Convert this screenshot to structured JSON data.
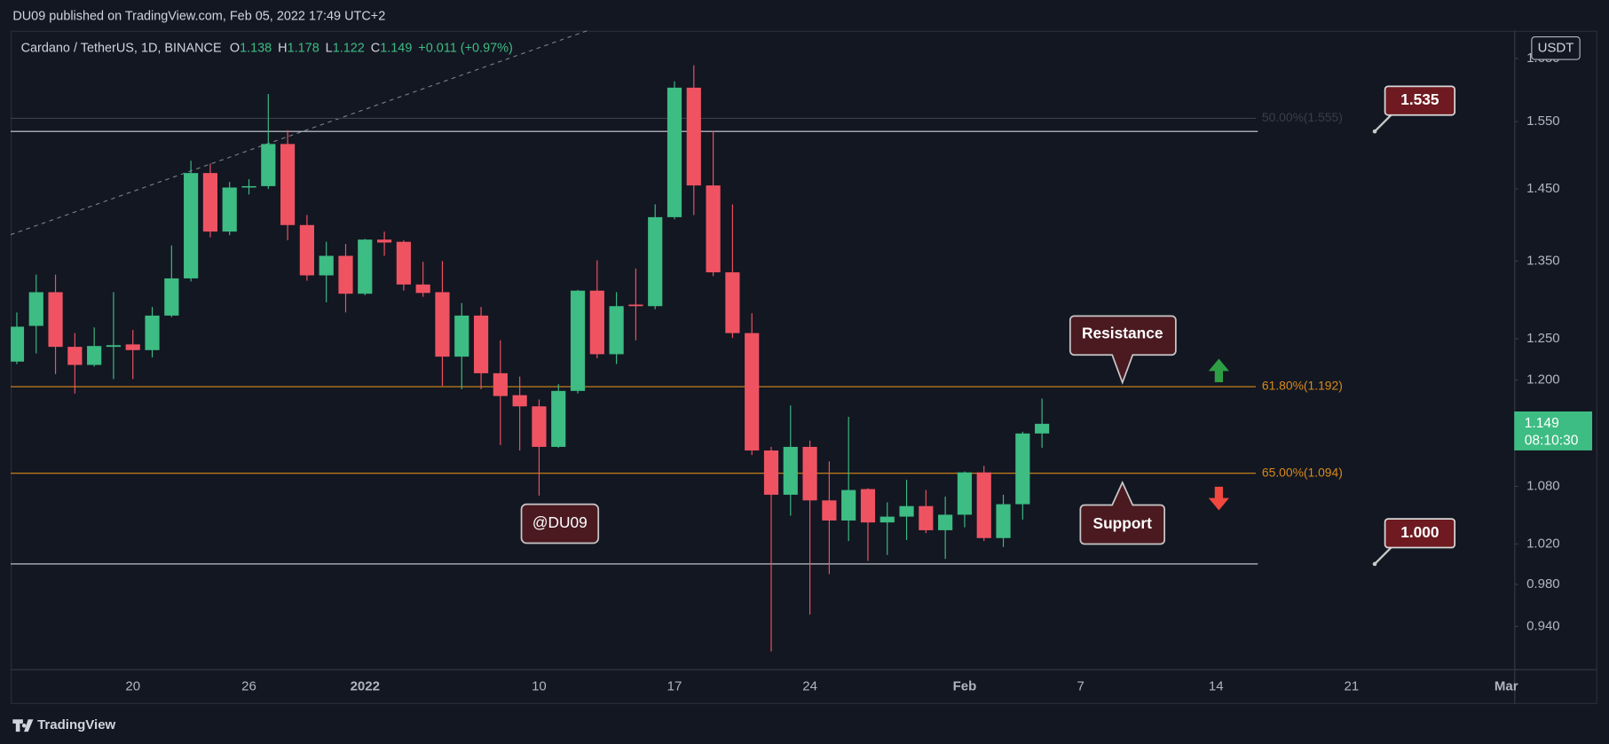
{
  "header": {
    "publisher": "DU09 published on TradingView.com, Feb 05, 2022 17:49 UTC+2"
  },
  "footer": {
    "brand": "TradingView"
  },
  "chart_data": {
    "type": "candlestick",
    "symbol": "Cardano / TetherUS, 1D, BINANCE",
    "ohlc_letters": [
      "O",
      "H",
      "L",
      "C"
    ],
    "change_label": "+0.011 (+0.97%)",
    "currency": "USDT",
    "countdown": "08:10:30",
    "categories": [
      null,
      null,
      null,
      null,
      null,
      null,
      "20",
      null,
      null,
      null,
      null,
      null,
      "26",
      null,
      null,
      null,
      null,
      null,
      "2022",
      null,
      null,
      null,
      null,
      null,
      null,
      null,
      null,
      "10",
      null,
      null,
      null,
      null,
      null,
      null,
      "17",
      null,
      null,
      null,
      null,
      null,
      null,
      "24",
      null,
      null,
      null,
      null,
      null,
      null,
      null,
      "Feb",
      null,
      null,
      null,
      null,
      null,
      "7",
      null,
      null,
      null,
      null,
      null,
      null,
      "14",
      null,
      null,
      null,
      null,
      null,
      null,
      "21",
      null,
      null,
      null,
      null,
      null,
      null,
      null,
      "Mar"
    ],
    "open": [
      1.222,
      1.266,
      1.309,
      1.24,
      1.218,
      1.24,
      1.243,
      1.236,
      1.279,
      1.327,
      1.473,
      1.39,
      1.452,
      1.454,
      1.516,
      1.399,
      1.331,
      1.357,
      1.307,
      1.379,
      1.376,
      1.319,
      1.309,
      1.228,
      1.279,
      1.208,
      1.182,
      1.169,
      1.123,
      1.187,
      1.311,
      1.231,
      1.293,
      1.291,
      1.41,
      1.603,
      1.455,
      1.335,
      1.257,
      1.119,
      1.071,
      1.123,
      1.065,
      1.044,
      1.077,
      1.042,
      1.048,
      1.059,
      1.034,
      1.05,
      1.095,
      1.026,
      1.061,
      1.138,
      null,
      null,
      null,
      null,
      null,
      null,
      null,
      null,
      null,
      null,
      null,
      null,
      null,
      null,
      null,
      null,
      null,
      null,
      null,
      null,
      null,
      null,
      null,
      null
    ],
    "high": [
      1.283,
      1.332,
      1.332,
      1.257,
      1.264,
      1.309,
      1.261,
      1.29,
      1.371,
      1.491,
      1.487,
      1.46,
      1.464,
      1.593,
      1.537,
      1.413,
      1.376,
      1.373,
      1.38,
      1.39,
      1.378,
      1.349,
      1.35,
      1.295,
      1.29,
      1.248,
      1.204,
      1.177,
      1.195,
      1.312,
      1.351,
      1.309,
      1.34,
      1.428,
      1.613,
      1.639,
      1.536,
      1.428,
      1.282,
      1.123,
      1.17,
      1.13,
      1.107,
      1.157,
      1.078,
      1.063,
      1.087,
      1.076,
      1.069,
      1.096,
      1.102,
      1.071,
      1.14,
      1.178,
      null,
      null,
      null,
      null,
      null,
      null,
      null,
      null,
      null,
      null,
      null,
      null,
      null,
      null,
      null,
      null,
      null,
      null,
      null,
      null,
      null,
      null,
      null,
      null
    ],
    "low": [
      1.219,
      1.232,
      1.207,
      1.184,
      1.216,
      1.201,
      1.201,
      1.227,
      1.277,
      1.323,
      1.382,
      1.385,
      1.442,
      1.45,
      1.378,
      1.324,
      1.296,
      1.283,
      1.305,
      1.357,
      1.311,
      1.303,
      1.193,
      1.189,
      1.189,
      1.125,
      1.119,
      1.07,
      1.122,
      1.184,
      1.226,
      1.219,
      1.248,
      1.287,
      1.407,
      1.413,
      1.33,
      1.251,
      1.114,
      0.917,
      1.049,
      0.951,
      0.99,
      1.023,
      1.003,
      1.009,
      1.024,
      1.031,
      1.005,
      1.037,
      1.023,
      1.017,
      1.045,
      1.122,
      null,
      null,
      null,
      null,
      null,
      null,
      null,
      null,
      null,
      null,
      null,
      null,
      null,
      null,
      null,
      null,
      null,
      null,
      null,
      null,
      null,
      null,
      null,
      null
    ],
    "close": [
      1.265,
      1.309,
      1.24,
      1.218,
      1.241,
      1.242,
      1.236,
      1.279,
      1.327,
      1.473,
      1.39,
      1.452,
      1.454,
      1.516,
      1.399,
      1.331,
      1.357,
      1.307,
      1.379,
      1.375,
      1.319,
      1.308,
      1.228,
      1.279,
      1.208,
      1.181,
      1.169,
      1.123,
      1.187,
      1.311,
      1.231,
      1.291,
      1.291,
      1.41,
      1.603,
      1.455,
      1.335,
      1.257,
      1.119,
      1.071,
      1.123,
      1.065,
      1.044,
      1.076,
      1.042,
      1.048,
      1.059,
      1.034,
      1.05,
      1.095,
      1.026,
      1.061,
      1.138,
      1.149,
      null,
      null,
      null,
      null,
      null,
      null,
      null,
      null,
      null,
      null,
      null,
      null,
      null,
      null,
      null,
      null,
      null,
      null,
      null,
      null,
      null,
      null,
      null,
      null
    ],
    "up_color": "#3dbc83",
    "down_color": "#ef5362",
    "log_scale": true,
    "ylim": [
      0.901,
      1.696
    ],
    "yticks": [
      {
        "value": 0.94,
        "label": "0.940"
      },
      {
        "value": 0.98,
        "label": "0.980"
      },
      {
        "value": 1.02,
        "label": "1.020"
      },
      {
        "value": 1.08,
        "label": "1.080"
      },
      {
        "value": 1.2,
        "label": "1.200"
      },
      {
        "value": 1.25,
        "label": "1.250"
      },
      {
        "value": 1.35,
        "label": "1.350"
      },
      {
        "value": 1.45,
        "label": "1.450"
      },
      {
        "value": 1.55,
        "label": "1.550"
      },
      {
        "value": 1.65,
        "label": "1.650"
      }
    ],
    "levels": [
      {
        "value": 1.535,
        "label": "1.535"
      },
      {
        "value": 1.0,
        "label": "1.000"
      }
    ],
    "fib_levels": [
      {
        "value": 1.555,
        "label": "50.00%(1.555)",
        "color": "#3a3e4a"
      },
      {
        "value": 1.192,
        "label": "61.80%(1.192)",
        "color": "#d88a1a"
      },
      {
        "value": 1.094,
        "label": "65.00%(1.094)",
        "color": "#d88a1a"
      }
    ],
    "annotations": {
      "resistance": "Resistance",
      "support": "Support",
      "watermark": "@DU09"
    }
  }
}
